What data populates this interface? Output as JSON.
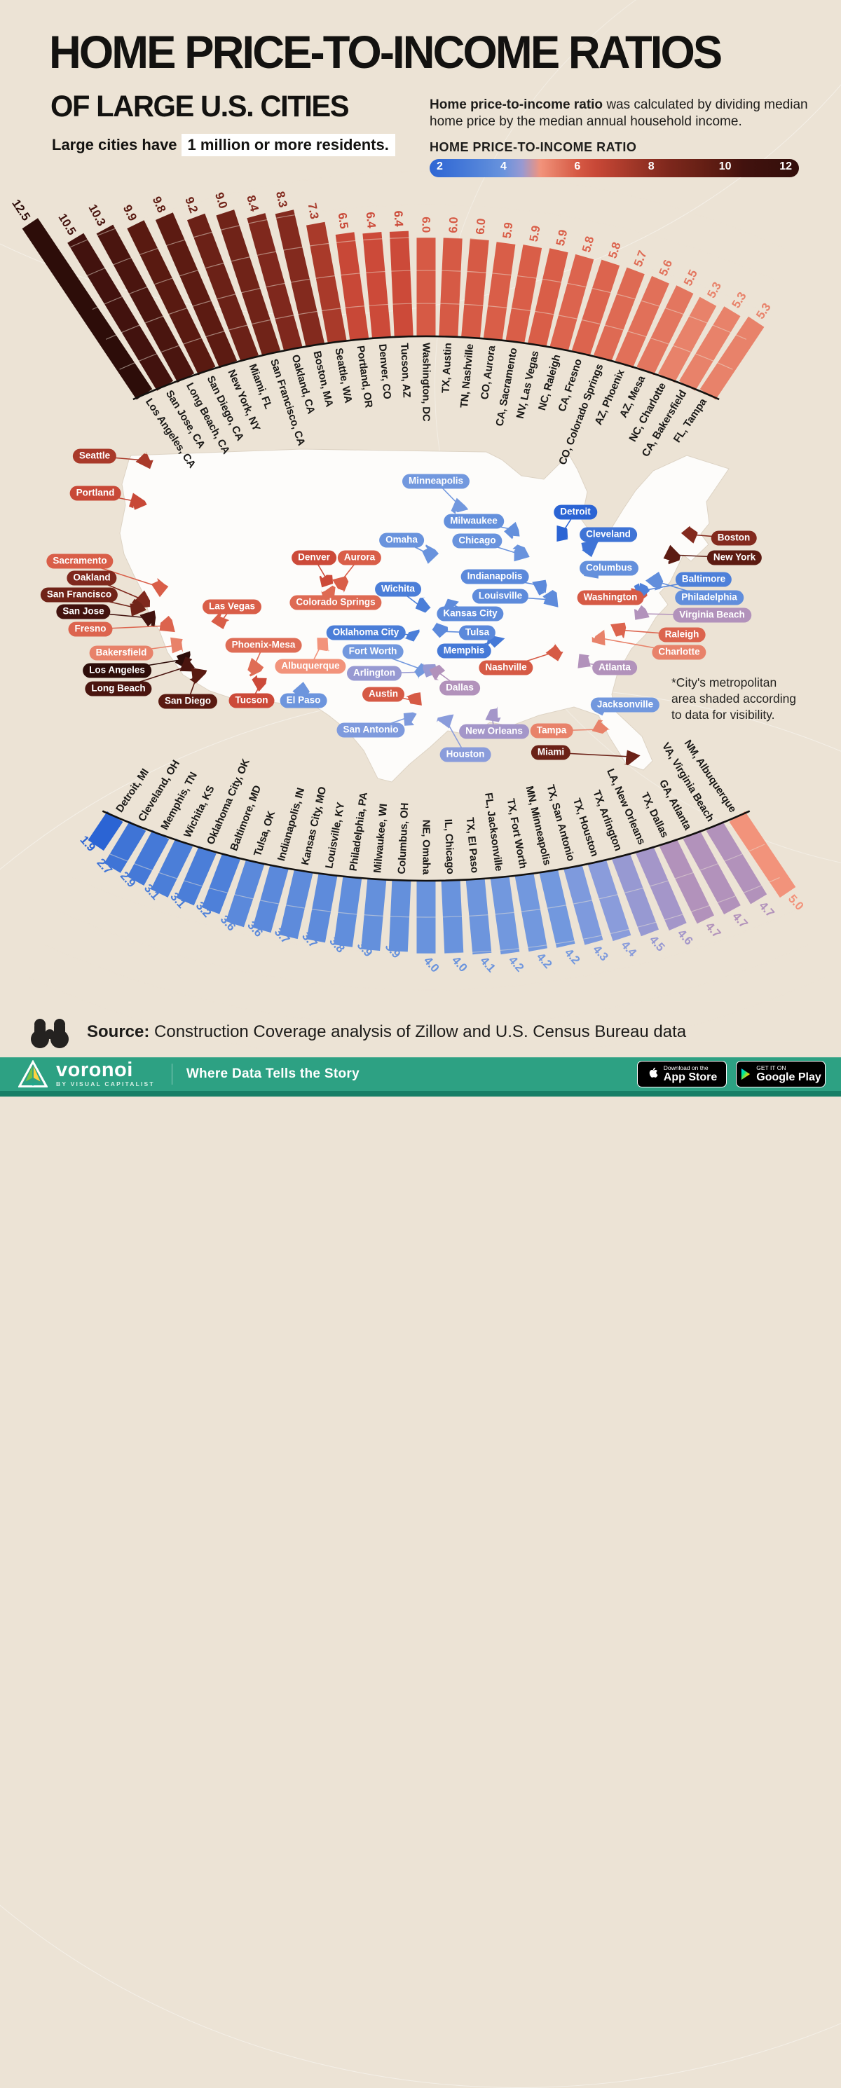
{
  "header": {
    "title": "HOME PRICE-TO-INCOME RATIOS",
    "subtitle": "OF LARGE U.S. CITIES",
    "note_text": "Large cities have",
    "note_highlight": "1 million or more residents.",
    "desc_bold": "Home price-to-income ratio",
    "desc_rest": " was calculated by dividing median home price by the median annual household income.",
    "legend_title": "HOME PRICE-TO-INCOME RATIO",
    "legend_ticks": [
      "2",
      "4",
      "6",
      "8",
      "10",
      "12"
    ]
  },
  "map": {
    "note": "*City's metropolitan area shaded according to data for visibility."
  },
  "source": {
    "label": "Source:",
    "text": "Construction Coverage analysis of Zillow and U.S. Census Bureau data"
  },
  "footer": {
    "brand": "voronoi",
    "brand_sub": "BY VISUAL CAPITALIST",
    "tagline": "Where Data Tells the Story",
    "badge1_top": "Download on the",
    "badge1_bottom": "App Store",
    "badge2_top": "GET IT ON",
    "badge2_bottom": "Google Play"
  },
  "chart_data": {
    "type": "bar",
    "subtype": "radial-fan",
    "title": "HOME PRICE-TO-INCOME RATIOS OF LARGE U.S. CITIES",
    "colorscale": {
      "legend_min": 2,
      "legend_max": 12,
      "stops": [
        [
          1.9,
          "#2b64d4"
        ],
        [
          2.7,
          "#3f74d6"
        ],
        [
          3.2,
          "#4e80d9"
        ],
        [
          3.9,
          "#6490dc"
        ],
        [
          4.2,
          "#7298de"
        ],
        [
          4.4,
          "#8a9cdb"
        ],
        [
          4.6,
          "#a496c9"
        ],
        [
          4.7,
          "#b292bb"
        ],
        [
          4.85,
          "#d0909a"
        ],
        [
          5.0,
          "#f2937b"
        ],
        [
          5.3,
          "#e8826a"
        ],
        [
          5.9,
          "#d95e48"
        ],
        [
          6.4,
          "#cc4a39"
        ],
        [
          7.3,
          "#a93a2a"
        ],
        [
          8.4,
          "#7f281d"
        ],
        [
          9.2,
          "#6b2117"
        ],
        [
          9.9,
          "#591a11"
        ],
        [
          10.5,
          "#42120e"
        ],
        [
          12.5,
          "#2d0d09"
        ]
      ]
    },
    "top_arc": {
      "categories": [
        "Los Angeles, CA",
        "San Jose, CA",
        "Long Beach, CA",
        "San Diego, CA",
        "New York, NY",
        "Miami, FL",
        "San Francisco, CA",
        "Oakland, CA",
        "Boston, MA",
        "Seattle, WA",
        "Portland, OR",
        "Denver, CO",
        "Tucson, AZ",
        "Washington, DC",
        "TX, Austin",
        "TN, Nashville",
        "CO, Aurora",
        "CA, Sacramento",
        "NV, Las Vegas",
        "NC, Raleigh",
        "CA, Fresno",
        "CO, Colorado Springs",
        "AZ, Phoenix",
        "AZ, Mesa",
        "NC, Charlotte",
        "CA, Bakersfield",
        "FL, Tampa"
      ],
      "values": [
        12.5,
        10.5,
        10.3,
        9.9,
        9.8,
        9.2,
        9.0,
        8.4,
        8.3,
        7.3,
        6.5,
        6.4,
        6.4,
        6.0,
        6.0,
        6.0,
        5.9,
        5.9,
        5.9,
        5.8,
        5.8,
        5.7,
        5.6,
        5.5,
        5.3,
        5.3,
        5.3
      ]
    },
    "bottom_arc": {
      "categories": [
        "Detroit, MI",
        "Cleveland, OH",
        "Memphis, TN",
        "Wichita, KS",
        "Oklahoma City, OK",
        "Baltimore, MD",
        "Tulsa, OK",
        "Indianapolis, IN",
        "Kansas City, MO",
        "Louisville, KY",
        "Philadelphia, PA",
        "Milwaukee, WI",
        "Columbus, OH",
        "NE, Omaha",
        "IL, Chicago",
        "TX, El Paso",
        "FL, Jacksonville",
        "TX, Fort Worth",
        "MN, Minneapolis",
        "TX, San Antonio",
        "TX, Houston",
        "TX, Arlington",
        "LA, New Orleans",
        "TX, Dallas",
        "GA, Atlanta",
        "VA, Virginia Beach",
        "NM, Albuquerque"
      ],
      "values": [
        1.9,
        2.7,
        2.9,
        3.1,
        3.1,
        3.2,
        3.6,
        3.6,
        3.7,
        3.7,
        3.8,
        3.9,
        3.9,
        4.0,
        4.0,
        4.1,
        4.2,
        4.2,
        4.2,
        4.3,
        4.4,
        4.5,
        4.6,
        4.7,
        4.7,
        4.7,
        5.0
      ]
    },
    "map_cities": [
      [
        "Seattle",
        7.3,
        135,
        651,
        207,
        657
      ],
      [
        "Portland",
        6.5,
        136,
        704,
        196,
        716
      ],
      [
        "Sacramento",
        5.9,
        114,
        801,
        228,
        838
      ],
      [
        "Oakland",
        8.4,
        131,
        825,
        204,
        856
      ],
      [
        "San Francisco",
        9.0,
        113,
        849,
        196,
        868
      ],
      [
        "San Jose",
        10.5,
        119,
        873,
        213,
        882
      ],
      [
        "Fresno",
        5.8,
        129,
        898,
        240,
        893
      ],
      [
        "Bakersfield",
        5.3,
        173,
        932,
        252,
        921
      ],
      [
        "Los Angeles",
        12.5,
        167,
        957,
        263,
        941
      ],
      [
        "Long Beach",
        10.3,
        169,
        983,
        268,
        951
      ],
      [
        "San Diego",
        9.9,
        268,
        1001,
        282,
        962
      ],
      [
        "Las Vegas",
        5.9,
        331,
        866,
        315,
        888
      ],
      [
        "Phoenix-Mesa",
        5.65,
        376,
        921,
        362,
        952
      ],
      [
        "Tucson",
        6.4,
        359,
        1000,
        372,
        976
      ],
      [
        "El Paso",
        4.1,
        433,
        1000,
        428,
        986
      ],
      [
        "Denver",
        6.4,
        448,
        796,
        468,
        830
      ],
      [
        "Aurora",
        5.9,
        513,
        796,
        484,
        833
      ],
      [
        "Colorado Springs",
        5.7,
        479,
        860,
        472,
        846
      ],
      [
        "Albuquerque",
        5.0,
        443,
        951,
        458,
        921
      ],
      [
        "Oklahoma City",
        3.1,
        522,
        903,
        590,
        906
      ],
      [
        "Wichita",
        3.1,
        568,
        841,
        601,
        866
      ],
      [
        "Kansas City",
        3.7,
        671,
        876,
        643,
        861
      ],
      [
        "Tulsa",
        3.6,
        681,
        903,
        626,
        901
      ],
      [
        "Fort Worth",
        4.2,
        532,
        930,
        601,
        955
      ],
      [
        "Arlington",
        4.5,
        534,
        961,
        612,
        959
      ],
      [
        "Dallas",
        4.7,
        656,
        982,
        622,
        957
      ],
      [
        "Austin",
        6.0,
        547,
        991,
        592,
        1000
      ],
      [
        "San Antonio",
        4.3,
        529,
        1042,
        582,
        1024
      ],
      [
        "Houston",
        4.4,
        664,
        1077,
        637,
        1029
      ],
      [
        "New Orleans",
        4.6,
        705,
        1044,
        702,
        1020
      ],
      [
        "Memphis",
        2.9,
        662,
        929,
        707,
        914
      ],
      [
        "Nashville",
        6.0,
        722,
        953,
        790,
        931
      ],
      [
        "Minneapolis",
        4.2,
        622,
        687,
        656,
        722
      ],
      [
        "Omaha",
        4.0,
        573,
        771,
        612,
        791
      ],
      [
        "Milwaukee",
        3.9,
        676,
        744,
        733,
        756
      ],
      [
        "Chicago",
        4.0,
        681,
        772,
        742,
        791
      ],
      [
        "Indianapolis",
        3.6,
        706,
        823,
        772,
        836
      ],
      [
        "Louisville",
        3.7,
        714,
        851,
        787,
        856
      ],
      [
        "Detroit",
        1.9,
        821,
        731,
        802,
        761
      ],
      [
        "Cleveland",
        2.7,
        868,
        763,
        842,
        781
      ],
      [
        "Columbus",
        3.9,
        869,
        811,
        846,
        816
      ],
      [
        "Washington",
        6.0,
        871,
        853,
        910,
        850
      ],
      [
        "Boston",
        8.3,
        1047,
        768,
        986,
        763
      ],
      [
        "New York",
        9.8,
        1048,
        796,
        958,
        792
      ],
      [
        "Baltimore",
        3.2,
        1004,
        827,
        917,
        843
      ],
      [
        "Philadelphia",
        3.8,
        1012,
        853,
        934,
        829
      ],
      [
        "Virginia Beach",
        4.7,
        1016,
        878,
        917,
        876
      ],
      [
        "Raleigh",
        5.8,
        973,
        906,
        882,
        899
      ],
      [
        "Charlotte",
        5.3,
        969,
        931,
        858,
        911
      ],
      [
        "Atlanta",
        4.7,
        877,
        953,
        832,
        946
      ],
      [
        "Jacksonville",
        4.2,
        892,
        1006,
        860,
        1009
      ],
      [
        "Tampa",
        5.3,
        787,
        1043,
        856,
        1041
      ],
      [
        "Miami",
        9.2,
        786,
        1074,
        900,
        1080
      ]
    ]
  }
}
